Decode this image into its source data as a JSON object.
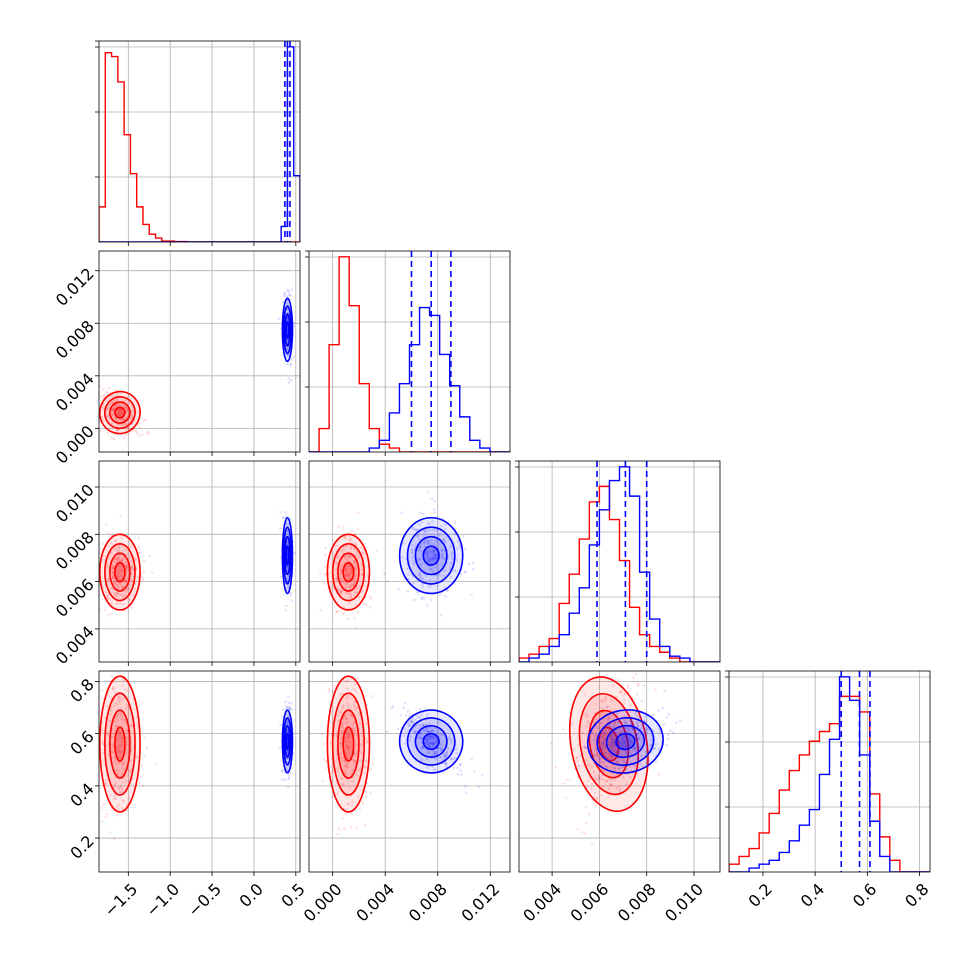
{
  "chart_data": {
    "type": "corner",
    "grid": true,
    "colors": {
      "series_a": "#ff0000",
      "series_b": "#0000ff",
      "grid": "#b0b0b0"
    },
    "series": [
      {
        "color": "#ff0000",
        "means": [
          -1.6,
          0.0012,
          0.0064,
          0.56
        ],
        "stds": [
          0.12,
          0.0008,
          0.0008,
          0.13
        ]
      },
      {
        "color": "#0000ff",
        "means": [
          0.4,
          0.0075,
          0.0071,
          0.57
        ],
        "stds": [
          0.03,
          0.0012,
          0.0008,
          0.06
        ]
      }
    ],
    "parameters": [
      {
        "range": [
          -1.85,
          0.55
        ],
        "ticks": [
          -1.5,
          -1.0,
          -0.5,
          0.0,
          0.5
        ],
        "tick_labels": [
          "−1.5",
          "−1.0",
          "−0.5",
          "0.0",
          "0.5"
        ]
      },
      {
        "range": [
          -0.0018,
          0.0135
        ],
        "ticks": [
          0.0,
          0.004,
          0.008,
          0.012
        ],
        "tick_labels": [
          "0.000",
          "0.004",
          "0.008",
          "0.012"
        ]
      },
      {
        "range": [
          0.0026,
          0.0111
        ],
        "ticks": [
          0.004,
          0.006,
          0.008,
          0.01
        ],
        "tick_labels": [
          "0.004",
          "0.006",
          "0.008",
          "0.010"
        ]
      },
      {
        "range": [
          0.07,
          0.84
        ],
        "ticks": [
          0.2,
          0.4,
          0.6,
          0.8
        ],
        "tick_labels": [
          "0.2",
          "0.4",
          "0.6",
          "0.8"
        ]
      }
    ],
    "marginals": [
      {
        "bins": [
          -1.85,
          0.55,
          32
        ],
        "red": [
          0.18,
          0.97,
          0.95,
          0.82,
          0.55,
          0.35,
          0.18,
          0.09,
          0.04,
          0.02,
          0.005,
          0.005,
          0.002,
          0.002,
          0.0,
          0.0,
          0.0,
          0.0,
          0.0,
          0.0,
          0.0,
          0.0,
          0.0,
          0.0,
          0.0,
          0.0,
          0.0,
          0.0,
          0.0,
          0.0,
          0.0,
          0.0
        ],
        "blue": [
          0.0,
          0.0,
          0.0,
          0.0,
          0.0,
          0.0,
          0.0,
          0.0,
          0.0,
          0.0,
          0.0,
          0.0,
          0.0,
          0.0,
          0.0,
          0.0,
          0.0,
          0.0,
          0.0,
          0.0,
          0.0,
          0.0,
          0.0,
          0.0,
          0.0,
          0.0,
          0.0,
          0.0,
          0.0,
          0.08,
          1.0,
          0.34
        ],
        "quantiles": [
          0.37,
          0.4,
          0.43
        ]
      },
      {
        "bins": [
          -0.0018,
          0.0135,
          20
        ],
        "red": [
          0.0,
          0.12,
          0.55,
          1.0,
          0.75,
          0.35,
          0.12,
          0.04,
          0.02,
          0.0,
          0.0,
          0.0,
          0.0,
          0.0,
          0.0,
          0.0,
          0.0,
          0.0,
          0.0,
          0.0
        ],
        "blue": [
          0.0,
          0.0,
          0.0,
          0.0,
          0.0,
          0.0,
          0.02,
          0.06,
          0.2,
          0.35,
          0.55,
          0.74,
          0.7,
          0.5,
          0.34,
          0.18,
          0.06,
          0.02,
          0.0,
          0.0
        ],
        "quantiles": [
          0.006,
          0.0075,
          0.009
        ]
      },
      {
        "bins": [
          0.0026,
          0.0111,
          20
        ],
        "red": [
          0.02,
          0.04,
          0.08,
          0.12,
          0.3,
          0.45,
          0.63,
          0.82,
          0.9,
          0.73,
          0.52,
          0.28,
          0.14,
          0.08,
          0.05,
          0.02,
          0.0,
          0.0,
          0.0,
          0.0
        ],
        "blue": [
          0.0,
          0.02,
          0.04,
          0.08,
          0.14,
          0.25,
          0.38,
          0.6,
          0.78,
          0.93,
          1.0,
          0.85,
          0.46,
          0.22,
          0.08,
          0.03,
          0.02,
          0.0,
          0.0,
          0.0
        ],
        "quantiles": [
          0.0059,
          0.0071,
          0.008
        ]
      },
      {
        "bins": [
          0.07,
          0.84,
          20
        ],
        "red": [
          0.04,
          0.08,
          0.12,
          0.2,
          0.3,
          0.42,
          0.52,
          0.6,
          0.67,
          0.72,
          0.76,
          0.9,
          0.9,
          0.82,
          0.4,
          0.18,
          0.06,
          0.0,
          0.0,
          0.0
        ],
        "blue": [
          0.0,
          0.0,
          0.02,
          0.04,
          0.06,
          0.1,
          0.16,
          0.24,
          0.32,
          0.5,
          0.68,
          1.0,
          0.88,
          0.6,
          0.26,
          0.08,
          0.0,
          0.0,
          0.0,
          0.0
        ],
        "quantiles": [
          0.5,
          0.57,
          0.61
        ]
      }
    ]
  }
}
